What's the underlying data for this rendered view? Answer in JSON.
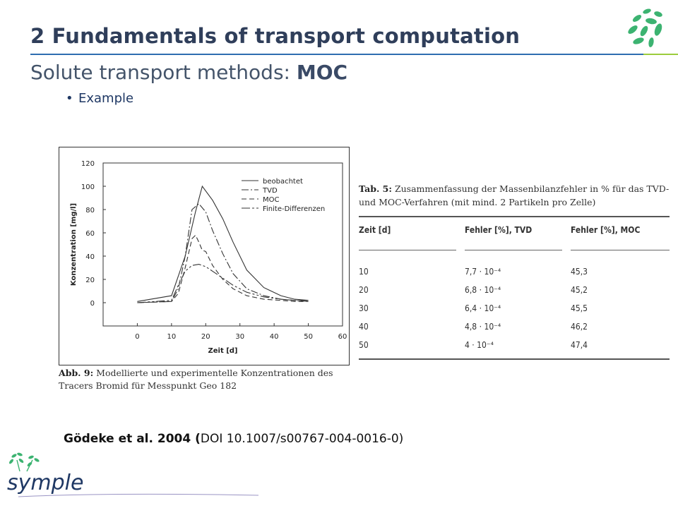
{
  "slide": {
    "title": "2  Fundamentals of transport computation",
    "subtitle_prefix": "Solute transport methods: ",
    "subtitle_bold": "MOC",
    "bullet": "Example"
  },
  "figure_caption": {
    "bold": "Abb. 9:",
    "text": " Modellierte und experimentelle Konzentrationen des Tracers Bromid für Messpunkt Geo 182"
  },
  "chart_data": {
    "type": "line",
    "title": "",
    "xlabel": "Zeit [d]",
    "ylabel": "Konzentration [mg/l]",
    "xlim": [
      -10,
      60
    ],
    "ylim": [
      -20,
      120
    ],
    "xticks": [
      0,
      10,
      20,
      30,
      40,
      50,
      60
    ],
    "yticks": [
      0,
      20,
      40,
      60,
      80,
      100,
      120
    ],
    "legend_position": "top-right",
    "series": [
      {
        "name": "beobachtet",
        "style": "solid",
        "x": [
          0,
          10,
          14,
          17,
          19,
          22,
          25,
          28,
          32,
          37,
          42,
          46,
          50
        ],
        "y": [
          1,
          6,
          40,
          78,
          100,
          88,
          72,
          52,
          28,
          13,
          6,
          3,
          2
        ]
      },
      {
        "name": "TVD",
        "style": "dashdot",
        "x": [
          0,
          10,
          12,
          14,
          16,
          18,
          20,
          22,
          25,
          28,
          32,
          37,
          42,
          46,
          50
        ],
        "y": [
          0,
          1,
          12,
          40,
          80,
          85,
          78,
          62,
          42,
          25,
          12,
          6,
          3,
          2,
          1
        ]
      },
      {
        "name": "MOC",
        "style": "dashed",
        "x": [
          0,
          10,
          12,
          14,
          16,
          17,
          18,
          19,
          20,
          22,
          25,
          28,
          32,
          37,
          42,
          46,
          50
        ],
        "y": [
          0,
          1,
          8,
          30,
          55,
          58,
          52,
          45,
          44,
          32,
          20,
          12,
          6,
          3,
          2,
          1,
          1
        ]
      },
      {
        "name": "Finite-Differenzen",
        "style": "longdash",
        "x": [
          0,
          10,
          12,
          14,
          16,
          18,
          20,
          22,
          25,
          28,
          32,
          37,
          42,
          46,
          50
        ],
        "y": [
          0,
          2,
          15,
          27,
          32,
          33,
          31,
          27,
          21,
          15,
          9,
          5,
          3,
          2,
          2
        ]
      }
    ]
  },
  "table": {
    "caption_bold": "Tab. 5:",
    "caption_text": " Zusammenfassung der Massenbilanzfehler in % für das TVD- und MOC-Verfahren (mit mind. 2 Partikeln pro Zelle)",
    "headers": [
      "Zeit [d]",
      "Fehler [%], TVD",
      "Fehler [%], MOC"
    ],
    "rows": [
      [
        "10",
        "7,7 · 10⁻⁴",
        "45,3"
      ],
      [
        "20",
        "6,8 · 10⁻⁴",
        "45,2"
      ],
      [
        "30",
        "6,4 · 10⁻⁴",
        "45,5"
      ],
      [
        "40",
        "4,8 · 10⁻⁴",
        "46,2"
      ],
      [
        "50",
        "4 · 10⁻⁴",
        "47,4"
      ]
    ]
  },
  "reference": {
    "bold": "Gödeke et al. 2004 (",
    "text": "DOI 10.1007/s00767-004-0016-0)"
  },
  "logo": {
    "text": "symple",
    "leaf_color": "#3cb371",
    "accent_color": "#9ccc3c",
    "line_color": "#9a94c4"
  },
  "colors": {
    "title": "#2f3e5a",
    "rule": "#2e6db0",
    "bullet": "#1f3864"
  }
}
